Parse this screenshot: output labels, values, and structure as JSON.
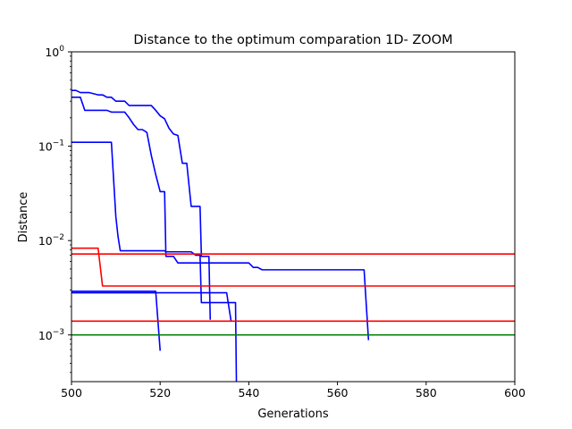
{
  "chart_data": {
    "type": "line",
    "title": "Distance to the optimum comparation 1D- ZOOM",
    "xlabel": "Generations",
    "ylabel": "Distance",
    "xlim": [
      500,
      600
    ],
    "ylim": [
      0.00032,
      1.0
    ],
    "yscale": "log",
    "grid": false,
    "x_ticks": [
      500,
      520,
      540,
      560,
      580,
      600
    ],
    "x_tick_labels": [
      "500",
      "520",
      "540",
      "560",
      "580",
      "600"
    ],
    "y_ticks": [
      0.001,
      0.01,
      0.1,
      1
    ],
    "y_tick_labels": [
      {
        "base": "10",
        "exp": "−3"
      },
      {
        "base": "10",
        "exp": "−2"
      },
      {
        "base": "10",
        "exp": "−1"
      },
      {
        "base": "10",
        "exp": "0"
      }
    ],
    "series": [
      {
        "color": "#0000ff",
        "points": [
          [
            500,
            0.39
          ],
          [
            501,
            0.39
          ],
          [
            502,
            0.37
          ],
          [
            504,
            0.37
          ],
          [
            506,
            0.35
          ],
          [
            507,
            0.35
          ],
          [
            508,
            0.33
          ],
          [
            509,
            0.33
          ],
          [
            510,
            0.3
          ],
          [
            512,
            0.3
          ],
          [
            513,
            0.27
          ],
          [
            518,
            0.27
          ],
          [
            519,
            0.24
          ],
          [
            520,
            0.21
          ],
          [
            521,
            0.195
          ],
          [
            522,
            0.155
          ],
          [
            523,
            0.135
          ],
          [
            524,
            0.13
          ],
          [
            525,
            0.066
          ],
          [
            526,
            0.066
          ],
          [
            527,
            0.023
          ],
          [
            529,
            0.023
          ],
          [
            529.3,
            0.0068
          ],
          [
            531,
            0.0068
          ],
          [
            531.3,
            0.00145
          ]
        ]
      },
      {
        "color": "#0000ff",
        "points": [
          [
            500,
            0.33
          ],
          [
            502,
            0.33
          ],
          [
            503,
            0.24
          ],
          [
            508,
            0.24
          ],
          [
            509,
            0.23
          ],
          [
            512,
            0.23
          ],
          [
            513,
            0.2
          ],
          [
            514,
            0.17
          ],
          [
            515,
            0.15
          ],
          [
            516,
            0.15
          ],
          [
            517,
            0.14
          ],
          [
            518,
            0.08
          ],
          [
            519,
            0.05
          ],
          [
            520,
            0.033
          ],
          [
            521,
            0.033
          ],
          [
            521.3,
            0.0068
          ],
          [
            523,
            0.0068
          ],
          [
            524,
            0.0058
          ],
          [
            540,
            0.0058
          ],
          [
            541,
            0.0052
          ],
          [
            542,
            0.0052
          ],
          [
            543,
            0.0049
          ],
          [
            566,
            0.0049
          ],
          [
            567,
            0.00088
          ]
        ]
      },
      {
        "color": "#0000ff",
        "points": [
          [
            500,
            0.11
          ],
          [
            501,
            0.11
          ],
          [
            509,
            0.11
          ],
          [
            510,
            0.018
          ],
          [
            510.5,
            0.011
          ],
          [
            511,
            0.0078
          ],
          [
            521,
            0.0078
          ],
          [
            521.3,
            0.0076
          ],
          [
            527,
            0.0076
          ],
          [
            528,
            0.007
          ],
          [
            529,
            0.007
          ],
          [
            529.3,
            0.0022
          ],
          [
            537,
            0.0022
          ],
          [
            537.2,
            0.00032
          ]
        ]
      },
      {
        "color": "#0000ff",
        "points": [
          [
            500,
            0.0029
          ],
          [
            519,
            0.0029
          ],
          [
            520,
            0.00068
          ]
        ]
      },
      {
        "color": "#0000ff",
        "points": [
          [
            500,
            0.0028
          ],
          [
            535,
            0.0028
          ],
          [
            536,
            0.0014
          ]
        ]
      },
      {
        "color": "#ff0000",
        "points": [
          [
            500,
            0.0083
          ],
          [
            506,
            0.0083
          ],
          [
            507,
            0.0033
          ],
          [
            508,
            0.0033
          ],
          [
            600,
            0.0033
          ]
        ]
      },
      {
        "color": "#ff0000",
        "points": [
          [
            500,
            0.0072
          ],
          [
            600,
            0.0072
          ]
        ]
      },
      {
        "color": "#ff0000",
        "points": [
          [
            500,
            0.0014
          ],
          [
            600,
            0.0014
          ]
        ]
      },
      {
        "color": "#008000",
        "points": [
          [
            500,
            0.001
          ],
          [
            600,
            0.001
          ]
        ]
      }
    ]
  }
}
